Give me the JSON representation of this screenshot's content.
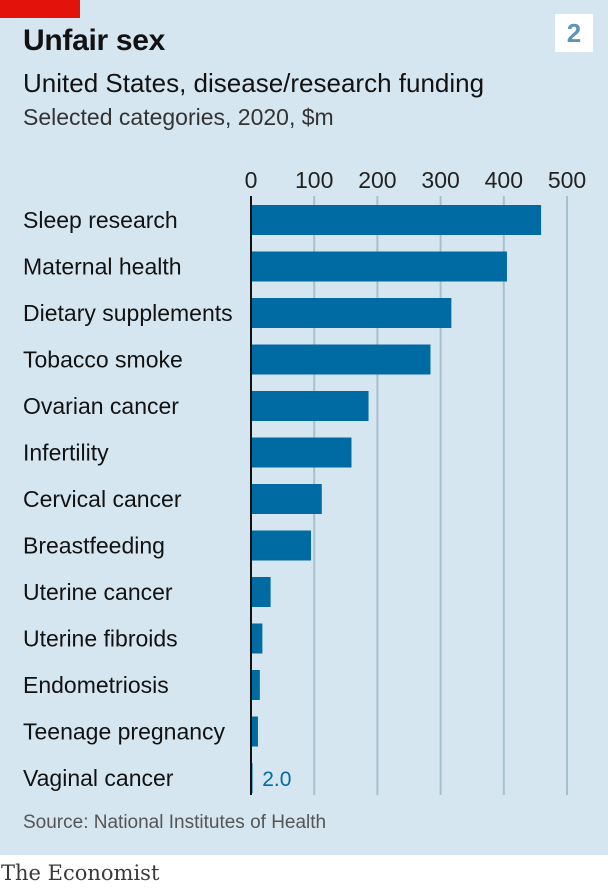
{
  "header": {
    "title": "Unfair sex",
    "subtitle": "United States, disease/research funding",
    "description": "Selected categories, 2020, $m",
    "badge": "2"
  },
  "footer": {
    "source": "Source: National Institutes of Health",
    "brand": "The Economist"
  },
  "colors": {
    "background": "#d6e6f0",
    "bar": "#006ba2",
    "gridline": "#a8bfcd",
    "accent_red": "#e3120b",
    "text": "#121212"
  },
  "chart_data": {
    "type": "bar",
    "orientation": "horizontal",
    "title": "Unfair sex",
    "subtitle": "United States, disease/research funding",
    "xlabel": "",
    "ylabel": "",
    "xlim": [
      0,
      500
    ],
    "ticks": [
      0,
      100,
      200,
      300,
      400,
      500
    ],
    "tick_position": "top",
    "grid": true,
    "categories": [
      "Sleep research",
      "Maternal health",
      "Dietary supplements",
      "Tobacco smoke",
      "Ovarian cancer",
      "Infertility",
      "Cervical cancer",
      "Breastfeeding",
      "Uterine cancer",
      "Uterine fibroids",
      "Endometriosis",
      "Teenage pregnancy",
      "Vaginal cancer"
    ],
    "values": [
      459,
      405,
      317,
      284,
      186,
      159,
      112,
      95,
      31,
      18,
      14,
      11,
      2.0
    ],
    "annotations": [
      {
        "category": "Vaginal cancer",
        "text": "2.0"
      }
    ]
  }
}
